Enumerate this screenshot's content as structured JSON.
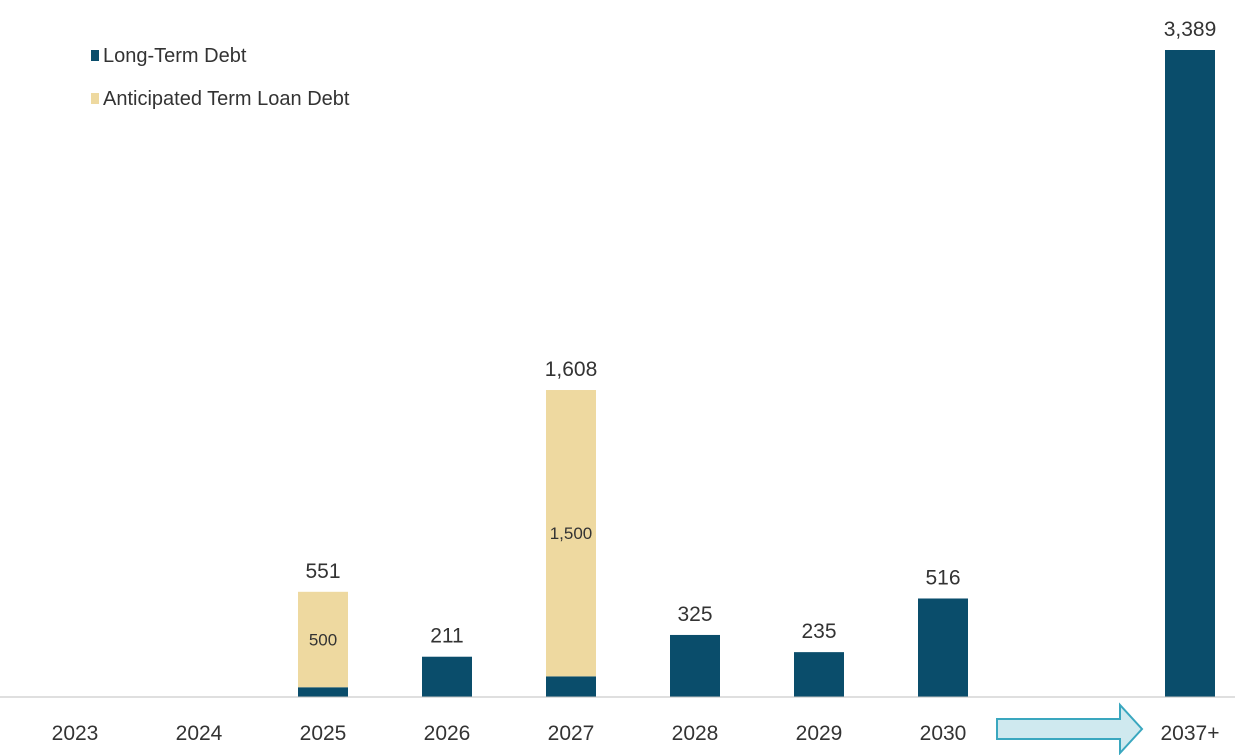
{
  "chart_data": {
    "type": "bar",
    "stacked": true,
    "categories": [
      "2023",
      "2024",
      "2025",
      "2026",
      "2027",
      "2028",
      "2029",
      "2030",
      "2037+"
    ],
    "series": [
      {
        "name": "Long-Term Debt",
        "color": "#0a4d6b",
        "values": [
          0,
          0,
          51,
          211,
          108,
          325,
          235,
          516,
          3389
        ]
      },
      {
        "name": "Anticipated Term Loan Debt",
        "color": "#eed9a0",
        "values": [
          0,
          0,
          500,
          0,
          1500,
          0,
          0,
          0,
          0
        ]
      }
    ],
    "totals": [
      "",
      "",
      "551",
      "211",
      "1,608",
      "325",
      "235",
      "516",
      "3,389"
    ],
    "segment_labels": [
      "",
      "",
      "500",
      "",
      "1,500",
      "",
      "",
      "",
      ""
    ],
    "ylim": [
      0,
      3389
    ],
    "grid": false,
    "legend_position": "top-left",
    "annotation": {
      "type": "arrow",
      "from_category": "2030",
      "to_category": "2037+",
      "fill": "#cfe9ef",
      "stroke": "#3aa7bf"
    }
  }
}
